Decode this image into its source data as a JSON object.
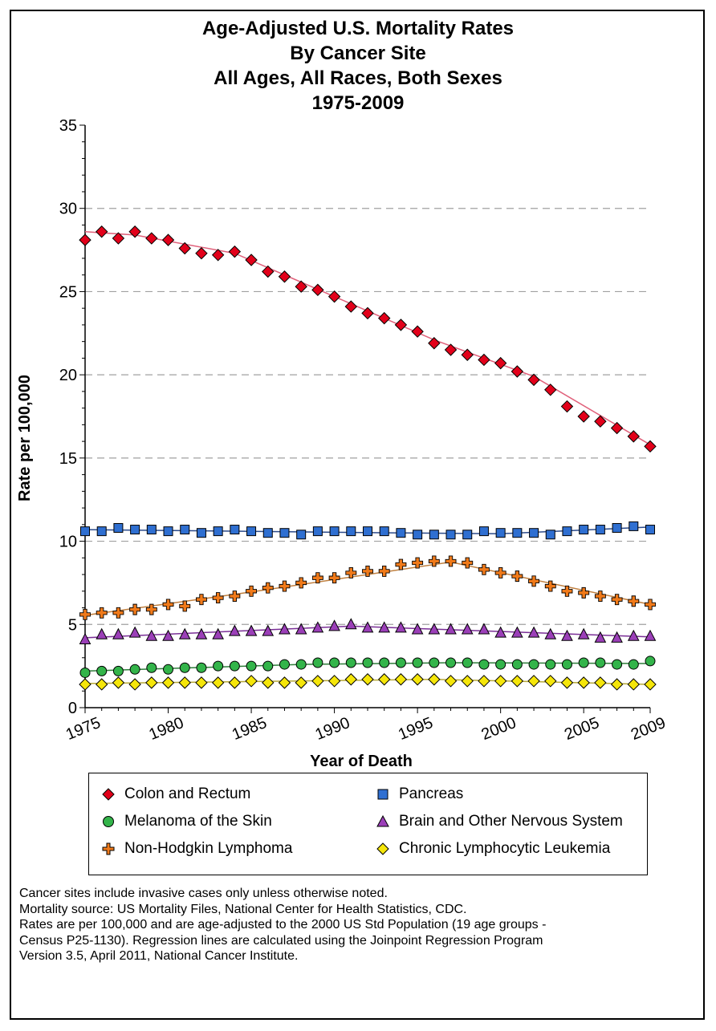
{
  "chart_data": {
    "type": "line",
    "title_lines": [
      "Age-Adjusted U.S. Mortality Rates",
      "By Cancer Site",
      "All Ages, All Races, Both Sexes",
      "1975-2009"
    ],
    "xlabel": "Year of Death",
    "ylabel": "Rate per 100,000",
    "xlim": [
      1975,
      2009
    ],
    "ylim": [
      0,
      35
    ],
    "x_ticks": [
      "1975",
      "1980",
      "1985",
      "1990",
      "1995",
      "2000",
      "2005",
      "2009"
    ],
    "y_ticks": [
      "0",
      "5",
      "10",
      "15",
      "20",
      "25",
      "30",
      "35"
    ],
    "grid": "horizontal dashed",
    "x": [
      1975,
      1976,
      1977,
      1978,
      1979,
      1980,
      1981,
      1982,
      1983,
      1984,
      1985,
      1986,
      1987,
      1988,
      1989,
      1990,
      1991,
      1992,
      1993,
      1994,
      1995,
      1996,
      1997,
      1998,
      1999,
      2000,
      2001,
      2002,
      2003,
      2004,
      2005,
      2006,
      2007,
      2008,
      2009
    ],
    "series": [
      {
        "name": "Colon and Rectum",
        "marker": "diamond",
        "color": "#e2001a",
        "line_color": "#e0607a",
        "values": [
          28.1,
          28.6,
          28.2,
          28.6,
          28.2,
          28.1,
          27.6,
          27.3,
          27.2,
          27.4,
          26.9,
          26.2,
          25.9,
          25.3,
          25.1,
          24.7,
          24.1,
          23.7,
          23.4,
          23.0,
          22.6,
          21.9,
          21.5,
          21.2,
          20.9,
          20.7,
          20.2,
          19.7,
          19.1,
          18.1,
          17.5,
          17.2,
          16.8,
          16.3,
          15.7
        ],
        "trend": [
          [
            1975,
            28.6
          ],
          [
            1978,
            28.4
          ],
          [
            1984,
            27.3
          ],
          [
            1996,
            22.1
          ],
          [
            2002,
            19.9
          ],
          [
            2009,
            15.8
          ]
        ]
      },
      {
        "name": "Pancreas",
        "marker": "square",
        "color": "#2f6fd1",
        "line_color": "#2b4a8a",
        "values": [
          10.6,
          10.6,
          10.8,
          10.7,
          10.7,
          10.6,
          10.7,
          10.5,
          10.6,
          10.7,
          10.6,
          10.5,
          10.5,
          10.4,
          10.6,
          10.6,
          10.6,
          10.6,
          10.6,
          10.5,
          10.4,
          10.4,
          10.4,
          10.4,
          10.6,
          10.5,
          10.5,
          10.5,
          10.4,
          10.6,
          10.7,
          10.7,
          10.8,
          10.9,
          10.7
        ],
        "trend": [
          [
            1975,
            10.7
          ],
          [
            1994,
            10.5
          ],
          [
            2000,
            10.45
          ],
          [
            2009,
            10.85
          ]
        ]
      },
      {
        "name": "Melanoma of the Skin",
        "marker": "circle",
        "color": "#33b44a",
        "line_color": "#2e7d3a",
        "values": [
          2.1,
          2.2,
          2.2,
          2.3,
          2.4,
          2.3,
          2.4,
          2.4,
          2.5,
          2.5,
          2.5,
          2.5,
          2.6,
          2.6,
          2.7,
          2.7,
          2.7,
          2.7,
          2.7,
          2.7,
          2.7,
          2.7,
          2.7,
          2.7,
          2.6,
          2.6,
          2.6,
          2.6,
          2.6,
          2.6,
          2.7,
          2.7,
          2.6,
          2.6,
          2.8
        ],
        "trend": [
          [
            1975,
            2.2
          ],
          [
            1988,
            2.6
          ],
          [
            1997,
            2.7
          ],
          [
            2009,
            2.65
          ]
        ]
      },
      {
        "name": "Brain and Other Nervous System",
        "marker": "triangle",
        "color": "#9b3fb8",
        "line_color": "#7a2f96",
        "values": [
          4.1,
          4.4,
          4.4,
          4.5,
          4.3,
          4.3,
          4.4,
          4.4,
          4.4,
          4.6,
          4.6,
          4.6,
          4.7,
          4.7,
          4.8,
          4.9,
          5.0,
          4.8,
          4.8,
          4.8,
          4.7,
          4.7,
          4.7,
          4.7,
          4.7,
          4.5,
          4.5,
          4.5,
          4.4,
          4.3,
          4.4,
          4.2,
          4.2,
          4.3,
          4.3
        ],
        "trend": [
          [
            1975,
            4.2
          ],
          [
            1991,
            4.9
          ],
          [
            2009,
            4.25
          ]
        ]
      },
      {
        "name": "Non-Hodgkin Lymphoma",
        "marker": "cross",
        "color": "#f07a1a",
        "line_color": "#c08040",
        "values": [
          5.6,
          5.7,
          5.7,
          5.9,
          5.9,
          6.2,
          6.1,
          6.5,
          6.6,
          6.7,
          7.0,
          7.2,
          7.3,
          7.5,
          7.8,
          7.8,
          8.1,
          8.2,
          8.2,
          8.6,
          8.7,
          8.8,
          8.8,
          8.7,
          8.3,
          8.1,
          7.9,
          7.6,
          7.3,
          7.0,
          6.9,
          6.7,
          6.5,
          6.4,
          6.2
        ],
        "trend": [
          [
            1975,
            5.55
          ],
          [
            1985,
            6.95
          ],
          [
            1997,
            8.75
          ],
          [
            2009,
            6.2
          ]
        ]
      },
      {
        "name": "Chronic Lymphocytic Leukemia",
        "marker": "diamond",
        "color": "#f5e60a",
        "line_color": "#b7a93a",
        "values": [
          1.4,
          1.4,
          1.5,
          1.4,
          1.5,
          1.5,
          1.5,
          1.5,
          1.5,
          1.5,
          1.6,
          1.5,
          1.5,
          1.5,
          1.6,
          1.6,
          1.7,
          1.7,
          1.7,
          1.7,
          1.7,
          1.7,
          1.6,
          1.6,
          1.6,
          1.6,
          1.6,
          1.6,
          1.6,
          1.5,
          1.5,
          1.5,
          1.4,
          1.4,
          1.4
        ],
        "trend": [
          [
            1975,
            1.45
          ],
          [
            1996,
            1.7
          ],
          [
            2009,
            1.4
          ]
        ]
      }
    ]
  },
  "legend": {
    "items": [
      "Colon and Rectum",
      "Pancreas",
      "Melanoma of the Skin",
      "Brain and Other Nervous System",
      "Non-Hodgkin Lymphoma",
      "Chronic Lymphocytic Leukemia"
    ]
  },
  "notes": [
    "Cancer sites include invasive cases only unless otherwise noted.",
    "Mortality source: US Mortality Files, National Center for Health Statistics, CDC.",
    "Rates are per 100,000 and are age-adjusted to the 2000 US Std Population (19 age groups -",
    "Census P25-1130). Regression lines are calculated using the Joinpoint Regression Program",
    "Version 3.5, April 2011, National Cancer Institute."
  ]
}
